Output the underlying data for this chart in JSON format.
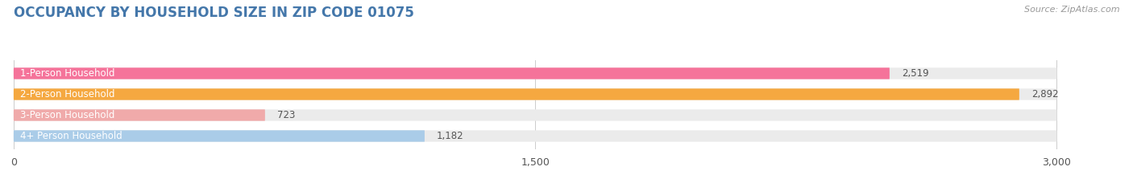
{
  "title": "OCCUPANCY BY HOUSEHOLD SIZE IN ZIP CODE 01075",
  "source": "Source: ZipAtlas.com",
  "categories": [
    "1-Person Household",
    "2-Person Household",
    "3-Person Household",
    "4+ Person Household"
  ],
  "values": [
    2519,
    2892,
    723,
    1182
  ],
  "bar_colors": [
    "#F5739A",
    "#F5A840",
    "#F0AAAA",
    "#AACCE8"
  ],
  "bar_bg_color": "#EBEBEB",
  "row_bg_colors": [
    "#F9F9F9",
    "#F9F9F9",
    "#F9F9F9",
    "#F9F9F9"
  ],
  "background_color": "#FFFFFF",
  "xlim": [
    0,
    3000
  ],
  "xticks": [
    0,
    1500,
    3000
  ],
  "title_color": "#4477AA",
  "label_color": "#555555",
  "value_color": "#555555",
  "source_color": "#999999",
  "title_fontsize": 12,
  "label_fontsize": 8.5,
  "value_fontsize": 8.5,
  "tick_fontsize": 9
}
